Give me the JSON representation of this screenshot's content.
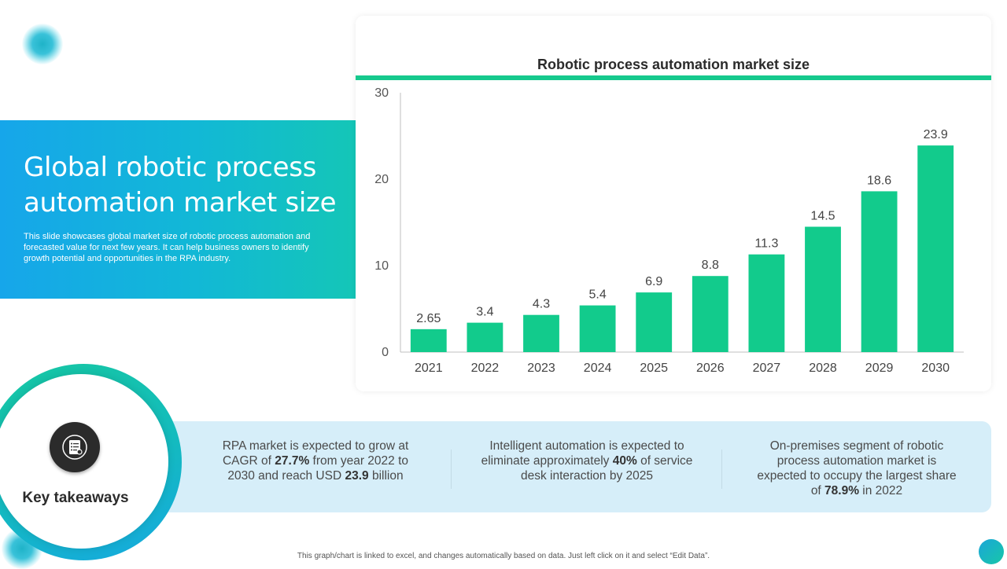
{
  "slide": {
    "title": "Global robotic process automation market size",
    "description": "This slide showcases global market size of robotic process automation and forecasted value for next few years. It can help business owners to identify growth potential and opportunities in the RPA industry.",
    "footnote": "This graph/chart is linked to excel, and changes automatically based on data. Just left click on it and select “Edit Data”."
  },
  "colors": {
    "bar": "#12cb8c",
    "accent_green": "#16c98d",
    "panel_blue": "#16a6ea",
    "band_bg": "#d6eef9"
  },
  "chart_data": {
    "type": "bar",
    "title": "Robotic process automation market size",
    "categories": [
      "2021",
      "2022",
      "2023",
      "2024",
      "2025",
      "2026",
      "2027",
      "2028",
      "2029",
      "2030"
    ],
    "values": [
      2.65,
      3.4,
      4.3,
      5.4,
      6.9,
      8.8,
      11.3,
      14.5,
      18.6,
      23.9
    ],
    "value_labels": [
      "2.65",
      "3.4",
      "4.3",
      "5.4",
      "6.9",
      "8.8",
      "11.3",
      "14.5",
      "18.6",
      "23.9"
    ],
    "ylim": [
      0,
      30
    ],
    "yticks": [
      "0",
      "10",
      "20",
      "30"
    ],
    "xlabel": "",
    "ylabel": "",
    "grid": false
  },
  "takeaways": {
    "label": "Key takeaways",
    "icon": "document-list-icon",
    "items": [
      {
        "pre": "RPA market is expected to grow at CAGR of ",
        "b1": "27.7%",
        "mid": " from year 2022 to 2030 and reach USD ",
        "b2": "23.9",
        "post": " billion"
      },
      {
        "pre": "Intelligent automation is expected to eliminate approximately ",
        "b1": "40%",
        "mid": " of service desk interaction by 2025"
      },
      {
        "pre": "On-premises segment of robotic process automation market is expected to occupy the largest share of ",
        "b1": "78.9%",
        "mid": " in 2022"
      }
    ]
  }
}
